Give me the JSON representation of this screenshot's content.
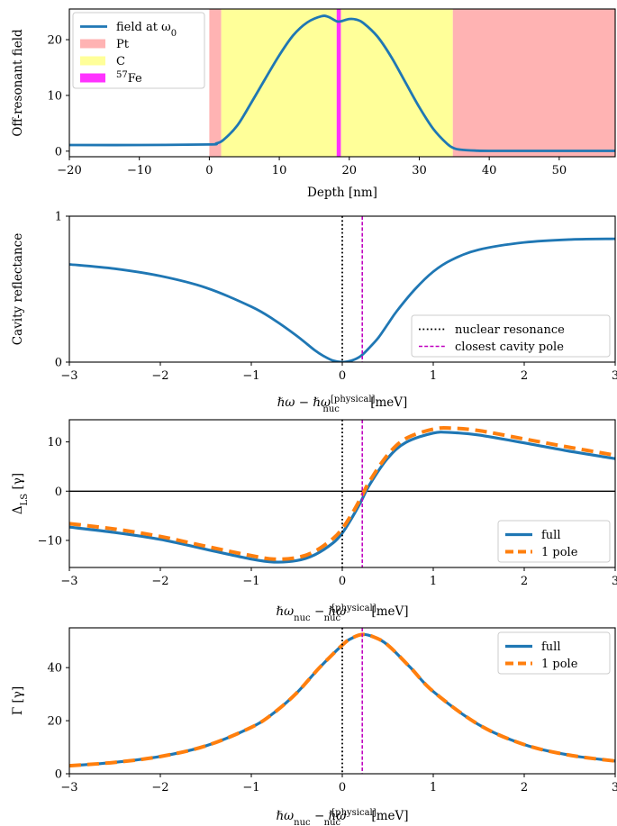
{
  "colors": {
    "field": "#1f77b4",
    "full": "#1f77b4",
    "one_pole": "#ff7f0e",
    "pt": "#ffb3b3",
    "c": "#ffff99",
    "fe": "#ff33ff",
    "resonance": "#000000",
    "pole": "#c000c0"
  },
  "chart_data": [
    {
      "type": "line",
      "ylabel": "Off-resonant field",
      "xlabel": "Depth [nm]",
      "xlim": [
        -20,
        58
      ],
      "ylim": [
        -1,
        25.5
      ],
      "xticks": [
        -20,
        -10,
        0,
        10,
        20,
        30,
        40,
        50
      ],
      "xtick_labels": [
        "−20",
        "−10",
        "0",
        "10",
        "20",
        "30",
        "40",
        "50"
      ],
      "yticks": [
        0,
        10,
        20
      ],
      "ytick_labels": [
        "0",
        "10",
        "20"
      ],
      "layers": [
        {
          "name": "Pt",
          "from": 0,
          "to": 1.7
        },
        {
          "name": "C",
          "from": 1.7,
          "to": 18.2
        },
        {
          "name": "57Fe",
          "from": 18.2,
          "to": 18.8
        },
        {
          "name": "C",
          "from": 18.8,
          "to": 34.8
        },
        {
          "name": "Pt",
          "from": 34.8,
          "to": 58
        }
      ],
      "legend": {
        "position": "upper-left",
        "entries": [
          {
            "key": "field",
            "text": "field at ω",
            "sub": "0"
          },
          {
            "key": "pt",
            "text": "Pt"
          },
          {
            "key": "c",
            "text": "C"
          },
          {
            "key": "fe",
            "sup": "57",
            "text": "Fe"
          }
        ]
      },
      "series": [
        {
          "name": "field at ω0",
          "x": [
            -20,
            -10,
            0,
            1,
            2,
            4,
            6,
            8,
            10,
            12,
            14,
            16,
            17,
            18.2,
            18.8,
            20,
            21,
            22,
            24,
            26,
            28,
            30,
            32,
            34,
            35,
            36,
            38,
            40,
            50,
            58
          ],
          "y": [
            1.1,
            1.1,
            1.2,
            1.4,
            2.0,
            4.6,
            8.7,
            13.0,
            17.2,
            20.8,
            23.1,
            24.2,
            24.1,
            23.3,
            23.3,
            23.7,
            23.6,
            23.0,
            20.6,
            16.9,
            12.4,
            7.9,
            4.0,
            1.3,
            0.5,
            0.25,
            0.1,
            0.05,
            0.05,
            0.05
          ]
        }
      ]
    },
    {
      "type": "line",
      "ylabel": "Cavity reflectance",
      "xlabel": "ℏω − ℏω",
      "xlabel_sub": "nuc",
      "xlabel_sup": "[physical]",
      "xlabel_unit": "[meV]",
      "xlim": [
        -3,
        3
      ],
      "ylim": [
        0,
        1
      ],
      "xticks": [
        -3,
        -2,
        -1,
        0,
        1,
        2,
        3
      ],
      "xtick_labels": [
        "−3",
        "−2",
        "−1",
        "0",
        "1",
        "2",
        "3"
      ],
      "yticks": [
        0,
        1
      ],
      "ytick_labels": [
        "0",
        "1"
      ],
      "resonance_x": 0,
      "pole_x": 0.22,
      "legend": {
        "position": "lower-right",
        "entries": [
          {
            "key": "resonance",
            "text": "nuclear resonance"
          },
          {
            "key": "pole",
            "text": "closest cavity pole"
          }
        ]
      },
      "series": [
        {
          "name": "reflectance",
          "x": [
            -3,
            -2.5,
            -2,
            -1.5,
            -1,
            -0.75,
            -0.5,
            -0.3,
            -0.2,
            -0.1,
            0,
            0.1,
            0.2,
            0.3,
            0.4,
            0.5,
            0.6,
            0.8,
            1,
            1.2,
            1.5,
            2,
            2.5,
            3
          ],
          "y": [
            0.67,
            0.64,
            0.59,
            0.51,
            0.38,
            0.29,
            0.18,
            0.08,
            0.04,
            0.01,
            0.0,
            0.01,
            0.04,
            0.1,
            0.17,
            0.26,
            0.35,
            0.5,
            0.62,
            0.7,
            0.77,
            0.82,
            0.84,
            0.845
          ]
        }
      ]
    },
    {
      "type": "line",
      "ylabel": "Δ",
      "ylabel_sub": "LS",
      "ylabel_unit": "[γ]",
      "xlabel": "ℏω",
      "xlabel_sub": "nuc",
      "xlabel_mid": " − ℏω",
      "xlabel_sub2": "nuc",
      "xlabel_sup": "[physical]",
      "xlabel_unit": "[meV]",
      "xlim": [
        -3,
        3
      ],
      "ylim": [
        -15.5,
        14.5
      ],
      "xticks": [
        -3,
        -2,
        -1,
        0,
        1,
        2,
        3
      ],
      "xtick_labels": [
        "−3",
        "−2",
        "−1",
        "0",
        "1",
        "2",
        "3"
      ],
      "yticks": [
        -10,
        0,
        10
      ],
      "ytick_labels": [
        "−10",
        "0",
        "10"
      ],
      "zero_line": true,
      "resonance_x": 0,
      "pole_x": 0.22,
      "legend": {
        "position": "lower-right",
        "entries": [
          {
            "key": "full",
            "text": "full"
          },
          {
            "key": "one_pole",
            "text": "1 pole"
          }
        ]
      },
      "series": [
        {
          "name": "full",
          "x": [
            -3,
            -2.5,
            -2,
            -1.5,
            -1,
            -0.75,
            -0.5,
            -0.3,
            -0.1,
            0,
            0.1,
            0.2,
            0.3,
            0.5,
            0.7,
            1,
            1.2,
            1.5,
            2,
            2.5,
            3
          ],
          "y": [
            -7.3,
            -8.4,
            -9.8,
            -11.8,
            -13.8,
            -14.4,
            -14.1,
            -12.9,
            -10.5,
            -8.5,
            -5.6,
            -2.3,
            1.3,
            6.7,
            9.9,
            11.8,
            11.9,
            11.4,
            9.8,
            8.1,
            6.6
          ]
        },
        {
          "name": "1 pole",
          "x": [
            -3,
            -2.5,
            -2,
            -1.5,
            -1,
            -0.75,
            -0.5,
            -0.3,
            -0.1,
            0,
            0.1,
            0.2,
            0.3,
            0.5,
            0.7,
            1,
            1.2,
            1.5,
            2,
            2.5,
            3
          ],
          "y": [
            -6.6,
            -7.7,
            -9.2,
            -11.2,
            -13.1,
            -13.8,
            -13.5,
            -12.2,
            -9.6,
            -7.6,
            -4.8,
            -1.5,
            2.0,
            7.4,
            10.7,
            12.6,
            12.8,
            12.3,
            10.6,
            8.9,
            7.3
          ]
        }
      ]
    },
    {
      "type": "line",
      "ylabel": "Γ [γ]",
      "xlabel": "ℏω",
      "xlabel_sub": "nuc",
      "xlabel_mid": " − ℏω",
      "xlabel_sub2": "nuc",
      "xlabel_sup": "[physical]",
      "xlabel_unit": "[meV]",
      "xlim": [
        -3,
        3
      ],
      "ylim": [
        0,
        55
      ],
      "xticks": [
        -3,
        -2,
        -1,
        0,
        1,
        2,
        3
      ],
      "xtick_labels": [
        "−3",
        "−2",
        "−1",
        "0",
        "1",
        "2",
        "3"
      ],
      "yticks": [
        0,
        20,
        40
      ],
      "ytick_labels": [
        "0",
        "20",
        "40"
      ],
      "resonance_x": 0,
      "pole_x": 0.22,
      "legend": {
        "position": "upper-right",
        "entries": [
          {
            "key": "full",
            "text": "full"
          },
          {
            "key": "one_pole",
            "text": "1 pole"
          }
        ]
      },
      "series": [
        {
          "name": "full",
          "x": [
            -3,
            -2.5,
            -2,
            -1.5,
            -1,
            -0.75,
            -0.5,
            -0.25,
            0,
            0.1,
            0.22,
            0.35,
            0.5,
            0.75,
            1,
            1.5,
            2,
            2.5,
            3
          ],
          "y": [
            3.0,
            4.3,
            6.5,
            10.5,
            17.5,
            23.0,
            30.5,
            40.0,
            48.5,
            51.0,
            52.5,
            51.5,
            48.5,
            40.0,
            31.0,
            18.5,
            11.0,
            7.0,
            4.8
          ]
        },
        {
          "name": "1 pole",
          "x": [
            -3,
            -2.5,
            -2,
            -1.5,
            -1,
            -0.75,
            -0.5,
            -0.25,
            0,
            0.1,
            0.22,
            0.35,
            0.5,
            0.75,
            1,
            1.5,
            2,
            2.5,
            3
          ],
          "y": [
            3.0,
            4.3,
            6.5,
            10.5,
            17.5,
            23.0,
            30.5,
            40.0,
            48.5,
            51.0,
            52.5,
            51.5,
            48.5,
            40.0,
            31.0,
            18.5,
            11.0,
            7.0,
            4.8
          ]
        }
      ]
    }
  ]
}
